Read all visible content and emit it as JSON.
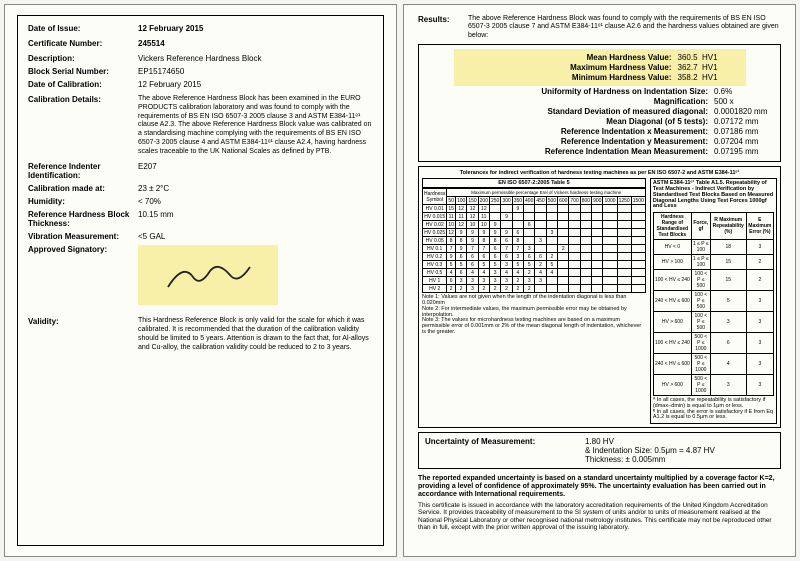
{
  "left": {
    "date_issue_label": "Date of Issue:",
    "date_issue": "12 February 2015",
    "cert_num_label": "Certificate Number:",
    "cert_num": "245514",
    "desc_label": "Description:",
    "desc": "Vickers Reference Hardness Block",
    "serial_label": "Block Serial Number:",
    "serial": "EP15174650",
    "date_cal_label": "Date of Calibration:",
    "date_cal": "12 February 2015",
    "cal_details_label": "Calibration Details:",
    "cal_details": "The above Reference Hardness Block has been examined in the EURO PRODUCTS calibration laboratory and was found to comply with the requirements of BS EN ISO 6507-3 2005 clause 3 and ASTM E384-11ᵉ¹ clause A2.3. The above Reference Hardness Block value was calibrated on a standardising machine complying with the requirements of BS EN ISO 6507-3 2005 clause 4 and ASTM E384-11ᵉ¹ clause A2.4, having hardness scales traceable to the UK National Scales as defined by PTB.",
    "indenter_label": "Reference Indenter Identification:",
    "indenter": "E207",
    "temp_label": "Calibration made at:",
    "temp": "23 ± 2°C",
    "humidity_label": "Humidity:",
    "humidity": "< 70%",
    "thickness_label": "Reference Hardness Block Thickness:",
    "thickness": "10.15 mm",
    "vibration_label": "Vibration Measurement:",
    "vibration": "<5 GAL",
    "signatory_label": "Approved Signatory:",
    "validity_label": "Validity:",
    "validity": "This Hardness Reference Block is only valid for the scale for which it was calibrated. It is recommended that the duration of the calibration validity should be limited to 5 years. Attention is drawn to the fact that, for Al-alloys and Cu-alloy, the calibration validity could be reduced to 2 to 3 years."
  },
  "right": {
    "results_label": "Results:",
    "results_intro": "The above Reference Hardness Block was found to comply with the requirements of BS EN ISO 6507-3 2005 clause 7 and ASTM E384-11ᵉ¹ clause A2.6 and the hardness values obtained are given below:",
    "mean_label": "Mean Hardness Value:",
    "mean_val": "360.5",
    "mean_unit": "HV1",
    "max_label": "Maximum Hardness Value:",
    "max_val": "362.7",
    "max_unit": "HV1",
    "min_label": "Minimum Hardness Value:",
    "min_val": "358.2",
    "min_unit": "HV1",
    "uniformity_label": "Uniformity of Hardness on Indentation Size:",
    "uniformity": "0.6%",
    "mag_label": "Magnification:",
    "mag": "500 x",
    "sd_label": "Standard Deviation of measured diagonal:",
    "sd": "0.0001820 mm",
    "meandiag_label": "Mean Diagonal (of 5 tests):",
    "meandiag": "0.07172 mm",
    "refx_label": "Reference Indentation x Measurement:",
    "refx": "0.07186 mm",
    "refy_label": "Reference Indentation y Measurement:",
    "refy": "0.07204 mm",
    "refmean_label": "Reference Indentation Mean Measurement:",
    "refmean": "0.07195 mm",
    "tol_title": "Tolerances for indirect verification of hardness testing machines as per EN ISO 6507-2 and ASTM E384-11ᵉ¹",
    "tol_left_header": "EN ISO 6507-2:2005 Table 5",
    "tol_subheader": "Maximum permissible percentage Erel of Vickers hardness testing machine",
    "tol_right_header": "ASTM E384-11ᵉ¹ Table A1.5. Repeatability of Test Machines - Indirect Verification by Standardised Test Blocks Based on Measured Diagonal Lengths Using Test Forces 1000gf and Less",
    "hardness_symbol": "Hardness Symbol",
    "hv_rows": [
      "HV 0.01",
      "HV 0.015",
      "HV 0.02",
      "HV 0.025",
      "HV 0.05",
      "HV 0.1",
      "HV 0.2",
      "HV 0.3",
      "HV 0.5",
      "HV 1",
      "HV 2"
    ],
    "hv_cols": [
      "50",
      "100",
      "150",
      "200",
      "250",
      "300",
      "350",
      "400",
      "450",
      "500",
      "600",
      "700",
      "800",
      "900",
      "1000",
      "1250",
      "1500"
    ],
    "note1": "Note 1: Values are not given when the length of the indentation diagonal is less than 0.020mm",
    "note2": "Note 2: For intermediate values, the maximum permissible error may be obtained by interpolation.",
    "note3": "Note 3: The values for microhardness testing machines are based on a maximum permissible error of 0.001mm or 2% of the mean diagonal length of indentation, whichever is the greater.",
    "astm_rows": [
      [
        "HV < 0",
        "1 ≤ P ≤ 100",
        "18",
        "3"
      ],
      [
        "HV > 100",
        "1 ≤ P ≤ 100",
        "15",
        "2"
      ],
      [
        "100 < HV ≤ 240",
        "100 < P ≤ 500",
        "15",
        "2"
      ],
      [
        "240 < HV ≤ 600",
        "100 < P ≤ 500",
        "5",
        "3"
      ],
      [
        "HV > 600",
        "100 < P ≤ 500",
        "3",
        "3"
      ],
      [
        "100 < HV ≤ 240",
        "500 < P ≤ 1000",
        "6",
        "3"
      ],
      [
        "240 < HV ≤ 600",
        "500 < P ≤ 1000",
        "4",
        "3"
      ],
      [
        "HV > 600",
        "500 < P ≤ 1000",
        "3",
        "3"
      ]
    ],
    "astm_col1": "Hardness Range of Standardised Test Blocks",
    "astm_col2": "Force, gf",
    "astm_col3": "R Maximum Repeatability (%)",
    "astm_col4": "E Maximum Error (%)",
    "astm_foot1": "ᴬ In all cases, the repeatability is satisfactory if (dmax−dmin) is equal to 1μm or less.",
    "astm_foot2": "ᴮ In all cases, the error is satisfactory if E from Eq A1.2 is equal to 0.5μm or less.",
    "uom_label": "Uncertainty of Measurement:",
    "uom_val": "1.80 HV",
    "uom_indent": "& Indentation Size: 0.5μm = 4.87 HV",
    "uom_thick": "Thickness:  ± 0.005mm",
    "footer_bold": "The reported expanded uncertainty is based on a standard uncertainty multiplied by a coverage factor K=2, providing a level of confidence of approximately 95%. The uncertainty evaluation has been carried out in accordance with International requirements.",
    "footer_small": "This certificate is issued in accordance with the laboratory accreditation requirements of the United Kingdom Accreditation Service. It provides traceability of measurement to the SI system of units and/or to units of measurement realised at the National Physical Laboratory or other recognised national metrology institutes. This certificate may not be reproduced other than in full, except with the prior written approval of the issuing laboratory."
  }
}
